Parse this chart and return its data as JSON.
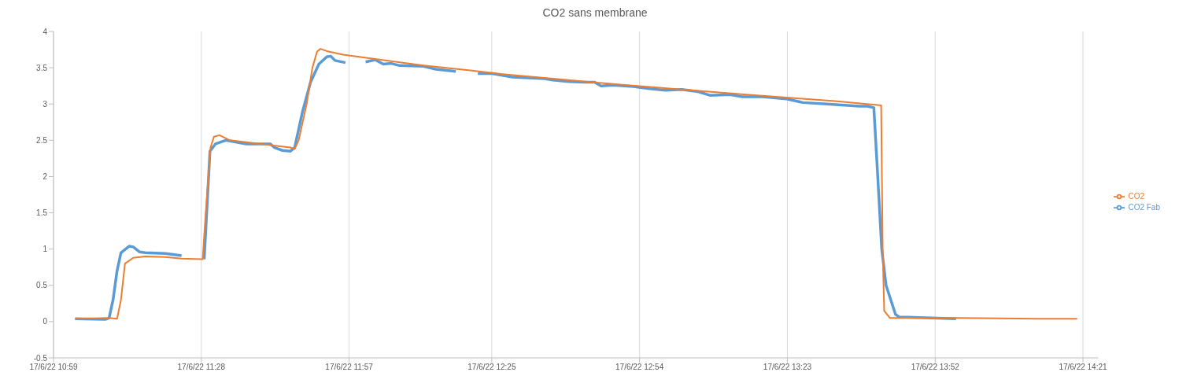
{
  "chart_data": {
    "type": "line",
    "title": "CO2 sans membrane",
    "legend": "right",
    "grid": "x",
    "marker": "none",
    "line_style": "solid",
    "xlim": [
      "--06-17T10:59",
      "--06-17T14:24"
    ],
    "xticks": [
      {
        "value": "--06-17T10:59",
        "label": "17/6/22 10:59"
      },
      {
        "value": "--06-17T11:28",
        "label": "17/6/22 11:28"
      },
      {
        "value": "--06-17T11:57",
        "label": "17/6/22 11:57"
      },
      {
        "value": "--06-17T12:25",
        "label": "17/6/22 12:25"
      },
      {
        "value": "--06-17T12:54",
        "label": "17/6/22 12:54"
      },
      {
        "value": "--06-17T13:23",
        "label": "17/6/22 13:23"
      },
      {
        "value": "--06-17T13:52",
        "label": "17/6/22 13:52"
      },
      {
        "value": "--06-17T14:21",
        "label": "17/6/22 14:21"
      }
    ],
    "ylim": [
      -0.5,
      4
    ],
    "yticks": [
      -0.5,
      0,
      0.5,
      1,
      1.5,
      2,
      2.5,
      3,
      3.5,
      4
    ],
    "series": [
      {
        "name": "CO2 Fab",
        "color": "#5b9bd5",
        "x": [
          "--06-17T11:03:14",
          "--06-17T11:09:07",
          "--06-17T11:09:54",
          "--06-17T11:10:41",
          "--06-17T11:11:28",
          "--06-17T11:12:14",
          "--06-17T11:13:52",
          "--06-17T11:14:38",
          "--06-17T11:15:54",
          "--06-17T11:16:59",
          "--06-17T11:20:56",
          "--06-17T11:24:07",
          "--06-17T11:25:48",
          "--06-17T11:28:34",
          "--06-17T11:29:42",
          "--06-17T11:30:47",
          "--06-17T11:32:49",
          "--06-17T11:36:47",
          "--06-17T11:41:31",
          "--06-17T11:42:22",
          "--06-17T11:43:55",
          "--06-17T11:45:29",
          "--06-17T11:46:19",
          "--06-17T11:47:53",
          "--06-17T11:49:26",
          "--06-17T11:51:04",
          "--06-17T11:52:37",
          "--06-17T11:53:24",
          "--06-17T11:54:14",
          "--06-17T11:56:17",
          "--06-17T11:58:08",
          "--06-17T12:00:14",
          "--06-17T12:02:06",
          "--06-17T12:03:43",
          "--06-17T12:05:17",
          "--06-17T12:06:54",
          "--06-17T12:11:38",
          "--06-17T12:13:59",
          "--06-17T12:17:56",
          "--06-17T12:20:02",
          "--06-17T12:22:16",
          "--06-17T12:25:05",
          "--06-17T12:29:02",
          "--06-17T12:35:24",
          "--06-17T12:36:58",
          "--06-17T12:40:08",
          "--06-17T12:43:16",
          "--06-17T12:45:11",
          "--06-17T12:46:26",
          "--06-17T12:48:50",
          "--06-17T12:52:48",
          "--06-17T12:55:59",
          "--06-17T12:59:06",
          "--06-17T13:02:17",
          "--06-17T13:05:28",
          "--06-17T13:07:48",
          "--06-17T13:11:46",
          "--06-17T13:14:10",
          "--06-17T13:18:07",
          "--06-17T13:22:52",
          "--06-17T13:26:02",
          "--06-17T13:30:47",
          "--06-17T13:37:08",
          "--06-17T13:38:42",
          "--06-17T13:39:58",
          "--06-17T13:40:44",
          "--06-17T13:41:31",
          "--06-17T13:42:22",
          "--06-17T13:44:13",
          "--06-17T13:45:00",
          "--06-17T13:46:37",
          "--06-17T13:56:06"
        ],
        "values": [
          0.04,
          0.03,
          0.05,
          0.3,
          0.7,
          0.95,
          1.04,
          1.03,
          0.96,
          0.95,
          0.94,
          0.91,
          null,
          0.86,
          2.35,
          2.45,
          2.5,
          2.45,
          2.45,
          2.4,
          2.36,
          2.35,
          2.4,
          2.9,
          3.3,
          3.55,
          3.65,
          3.66,
          3.6,
          3.57,
          null,
          3.58,
          3.61,
          3.55,
          3.56,
          3.53,
          3.52,
          3.48,
          3.45,
          null,
          3.42,
          3.42,
          3.37,
          3.35,
          3.33,
          3.31,
          3.3,
          3.3,
          3.25,
          3.26,
          3.24,
          3.21,
          3.19,
          3.2,
          3.17,
          3.12,
          3.13,
          3.1,
          3.1,
          3.07,
          3.02,
          3.0,
          2.97,
          2.97,
          2.95,
          2.0,
          1.0,
          0.5,
          0.1,
          0.06,
          0.06,
          0.04
        ]
      },
      {
        "name": "CO2",
        "color": "#ed7d31",
        "x": [
          "--06-17T11:03:14",
          "--06-17T11:09:54",
          "--06-17T11:11:28",
          "--06-17T11:12:14",
          "--06-17T11:13:01",
          "--06-17T11:14:38",
          "--06-17T11:16:59",
          "--06-17T11:20:56",
          "--06-17T11:24:07",
          "--06-17T11:28:16",
          "--06-17T11:28:52",
          "--06-17T11:29:49",
          "--06-17T11:30:29",
          "--06-17T11:31:34",
          "--06-17T11:33:36",
          "--06-17T11:38:24",
          "--06-17T11:43:08",
          "--06-17T11:45:29",
          "--06-17T11:46:19",
          "--06-17T11:47:06",
          "--06-17T11:48:40",
          "--06-17T11:49:48",
          "--06-17T11:50:42",
          "--06-17T11:51:22",
          "--06-17T11:52:37",
          "--06-17T11:55:48",
          "--06-17T12:02:06",
          "--06-17T12:11:38",
          "--06-17T12:21:07",
          "--06-17T12:27:29",
          "--06-17T12:36:58",
          "--06-17T12:49:37",
          "--06-17T13:02:17",
          "--06-17T13:14:56",
          "--06-17T13:24:25",
          "--06-17T13:32:20",
          "--06-17T13:40:16",
          "--06-17T13:41:24",
          "--06-17T13:41:42",
          "--06-17T13:42:00",
          "--06-17T13:43:08",
          "--06-17T13:56:06",
          "--06-17T14:11:56",
          "--06-17T14:19:52"
        ],
        "values": [
          0.04,
          0.05,
          0.04,
          0.3,
          0.8,
          0.88,
          0.9,
          0.89,
          0.87,
          0.86,
          1.5,
          2.4,
          2.55,
          2.57,
          2.5,
          2.46,
          2.42,
          2.4,
          2.38,
          2.5,
          3.0,
          3.5,
          3.72,
          3.76,
          3.73,
          3.68,
          3.62,
          3.53,
          3.46,
          3.41,
          3.35,
          3.27,
          3.2,
          3.13,
          3.08,
          3.04,
          2.99,
          2.98,
          1.0,
          0.15,
          0.05,
          0.05,
          0.04,
          0.04
        ]
      }
    ]
  }
}
